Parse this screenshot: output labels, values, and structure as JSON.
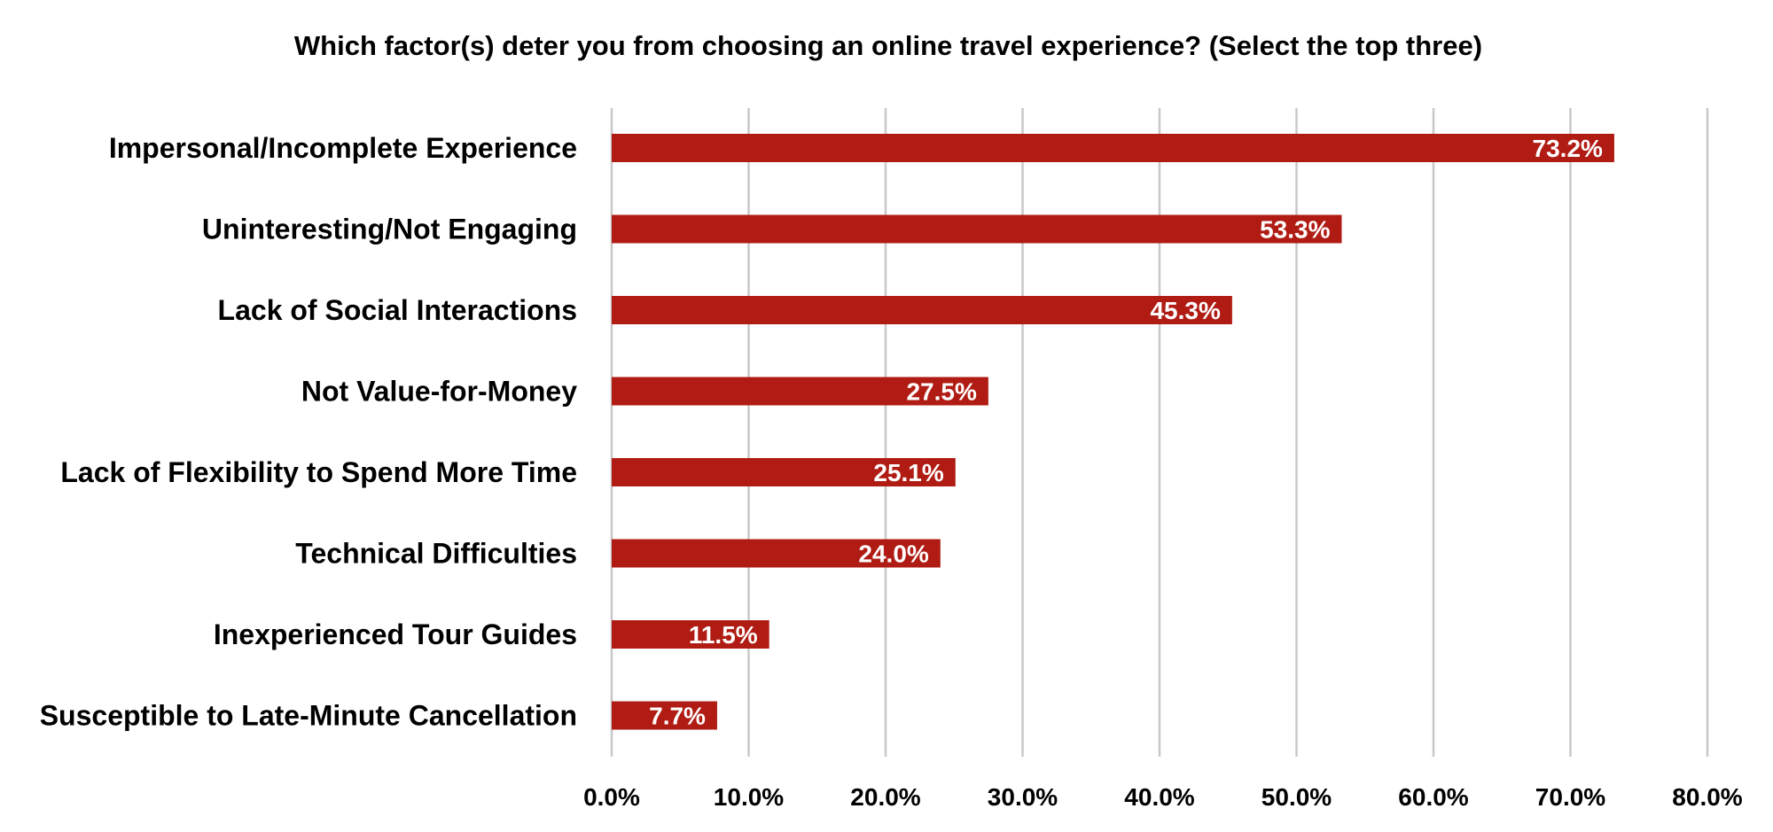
{
  "chart_data": {
    "type": "bar",
    "orientation": "horizontal",
    "title": "Which factor(s) deter you from choosing an online travel experience? (Select the top three)",
    "xlabel": "",
    "ylabel": "",
    "categories": [
      "Impersonal/Incomplete Experience",
      "Uninteresting/Not Engaging",
      "Lack of Social Interactions",
      "Not Value-for-Money",
      "Lack of Flexibility to Spend More Time",
      "Technical Difficulties",
      "Inexperienced Tour Guides",
      "Susceptible to Late-Minute Cancellation"
    ],
    "values": [
      73.2,
      53.3,
      45.3,
      27.5,
      25.1,
      24.0,
      11.5,
      7.7
    ],
    "data_labels": [
      "73.2%",
      "53.3%",
      "45.3%",
      "27.5%",
      "25.1%",
      "24.0%",
      "11.5%",
      "7.7%"
    ],
    "xlim": [
      0,
      80
    ],
    "x_ticks": [
      0,
      10,
      20,
      30,
      40,
      50,
      60,
      70,
      80
    ],
    "x_tick_labels": [
      "0.0%",
      "10.0%",
      "20.0%",
      "30.0%",
      "40.0%",
      "50.0%",
      "60.0%",
      "70.0%",
      "80.0%"
    ],
    "grid": true,
    "legend": "none",
    "bar_color": "#b01c14",
    "data_label_color": "#ffffff",
    "grid_color": "#c8c8c8"
  }
}
